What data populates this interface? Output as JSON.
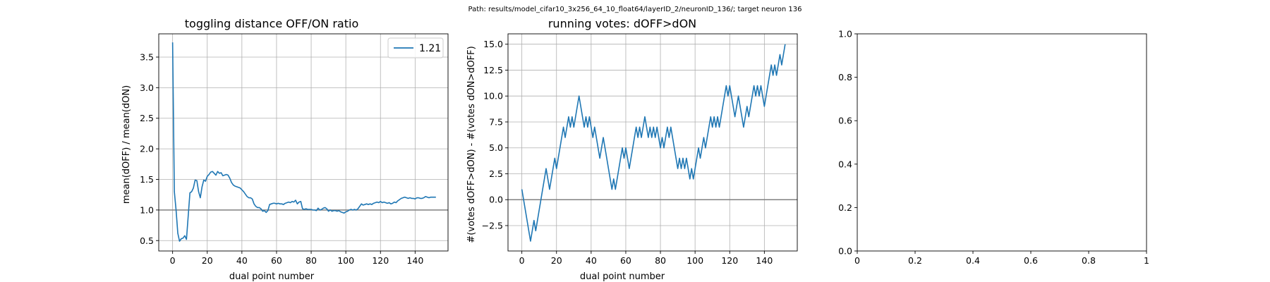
{
  "suptitle": "Path: results/model_cifar10_3x256_64_10_float64/layerID_2/neuronID_136/; target neuron 136",
  "colors": {
    "series": "#1f77b4",
    "grid": "#b0b0b0",
    "refline": "#808080",
    "axes": "#000000"
  },
  "chart_data": [
    {
      "type": "line",
      "title": "toggling distance OFF/ON ratio",
      "xlabel": "dual point number",
      "ylabel": "mean(dOFF) / mean(dON)",
      "xlim": [
        -8,
        159
      ],
      "ylim": [
        0.33,
        3.88
      ],
      "xticks": [
        0,
        20,
        40,
        60,
        80,
        100,
        120,
        140
      ],
      "yticks": [
        0.5,
        1.0,
        1.5,
        2.0,
        2.5,
        3.0,
        3.5
      ],
      "ytick_labels": [
        "0.5",
        "1.0",
        "1.5",
        "2.0",
        "2.5",
        "3.0",
        "3.5"
      ],
      "grid": true,
      "reference_line": 1.0,
      "legend": {
        "position": "upper right",
        "label": "1.21"
      },
      "series": [
        {
          "name": "1.21",
          "y": [
            3.74,
            1.3,
            1.0,
            0.62,
            0.49,
            0.53,
            0.54,
            0.58,
            0.52,
            0.9,
            1.28,
            1.3,
            1.36,
            1.49,
            1.48,
            1.3,
            1.2,
            1.38,
            1.49,
            1.47,
            1.55,
            1.58,
            1.62,
            1.63,
            1.6,
            1.57,
            1.63,
            1.6,
            1.61,
            1.56,
            1.57,
            1.58,
            1.57,
            1.52,
            1.45,
            1.41,
            1.39,
            1.38,
            1.37,
            1.36,
            1.33,
            1.3,
            1.26,
            1.22,
            1.2,
            1.2,
            1.18,
            1.1,
            1.06,
            1.04,
            1.04,
            1.02,
            0.98,
            0.99,
            0.96,
            0.99,
            1.09,
            1.1,
            1.11,
            1.11,
            1.1,
            1.11,
            1.1,
            1.1,
            1.09,
            1.11,
            1.12,
            1.13,
            1.12,
            1.14,
            1.13,
            1.16,
            1.1,
            1.13,
            1.14,
            1.02,
            1.01,
            1.02,
            1.01,
            1.01,
            1.01,
            1.0,
            1.0,
            0.99,
            1.03,
            1.0,
            1.01,
            1.03,
            1.04,
            1.02,
            0.98,
            1.0,
            0.98,
            0.99,
            0.99,
            0.98,
            0.99,
            0.97,
            0.96,
            0.95,
            0.97,
            0.98,
            1.0,
            1.01,
            1.0,
            1.01,
            1.0,
            1.02,
            1.06,
            1.1,
            1.08,
            1.09,
            1.1,
            1.09,
            1.1,
            1.09,
            1.11,
            1.12,
            1.13,
            1.12,
            1.14,
            1.12,
            1.13,
            1.12,
            1.11,
            1.12,
            1.1,
            1.11,
            1.13,
            1.12,
            1.15,
            1.17,
            1.19,
            1.2,
            1.21,
            1.2,
            1.19,
            1.2,
            1.19,
            1.19,
            1.18,
            1.2,
            1.2,
            1.19,
            1.19,
            1.2,
            1.22,
            1.21,
            1.2,
            1.21,
            1.21,
            1.21,
            1.21
          ]
        }
      ]
    },
    {
      "type": "line",
      "title": "running votes: dOFF>dON",
      "xlabel": "dual point number",
      "ylabel": "#(votes dOFF>dON) - #(votes dON>dOFF)",
      "xlim": [
        -8,
        159
      ],
      "ylim": [
        -4.95,
        16.0
      ],
      "xticks": [
        0,
        20,
        40,
        60,
        80,
        100,
        120,
        140
      ],
      "yticks": [
        -2.5,
        0.0,
        2.5,
        5.0,
        7.5,
        10.0,
        12.5,
        15.0
      ],
      "ytick_labels": [
        "−2.5",
        "0.0",
        "2.5",
        "5.0",
        "7.5",
        "10.0",
        "12.5",
        "15.0"
      ],
      "grid": true,
      "reference_line": 0.0,
      "series": [
        {
          "name": "",
          "y": [
            1,
            0,
            -1,
            -2,
            -3,
            -4,
            -3,
            -2,
            -3,
            -2,
            -1,
            0,
            1,
            2,
            3,
            2,
            1,
            2,
            3,
            4,
            3,
            4,
            5,
            6,
            7,
            6,
            7,
            8,
            7,
            8,
            7,
            8,
            9,
            10,
            9,
            8,
            7,
            8,
            7,
            8,
            7,
            6,
            7,
            6,
            5,
            4,
            5,
            6,
            5,
            4,
            3,
            2,
            1,
            2,
            1,
            2,
            3,
            4,
            5,
            4,
            5,
            4,
            3,
            4,
            5,
            6,
            7,
            6,
            7,
            6,
            7,
            8,
            7,
            6,
            7,
            6,
            7,
            6,
            7,
            6,
            5,
            6,
            5,
            6,
            7,
            6,
            7,
            6,
            5,
            4,
            3,
            4,
            3,
            4,
            3,
            4,
            3,
            2,
            3,
            2,
            3,
            4,
            5,
            4,
            5,
            6,
            5,
            6,
            7,
            8,
            7,
            8,
            7,
            8,
            7,
            8,
            9,
            10,
            11,
            10,
            11,
            10,
            9,
            8,
            9,
            10,
            9,
            8,
            7,
            8,
            9,
            8,
            9,
            10,
            11,
            10,
            11,
            10,
            11,
            10,
            9,
            10,
            11,
            12,
            13,
            12,
            13,
            12,
            13,
            14,
            13,
            14,
            15
          ]
        }
      ]
    },
    {
      "type": "line",
      "title": "",
      "xlabel": "",
      "ylabel": "",
      "xlim": [
        0,
        1
      ],
      "ylim": [
        0,
        1
      ],
      "xticks": [
        0,
        0.2,
        0.4,
        0.6,
        0.8,
        1.0
      ],
      "yticks": [
        0,
        0.2,
        0.4,
        0.6,
        0.8,
        1.0
      ],
      "ytick_labels": [
        "0.0",
        "0.2",
        "0.4",
        "0.6",
        "0.8",
        "1.0"
      ],
      "grid": false,
      "series": []
    }
  ]
}
